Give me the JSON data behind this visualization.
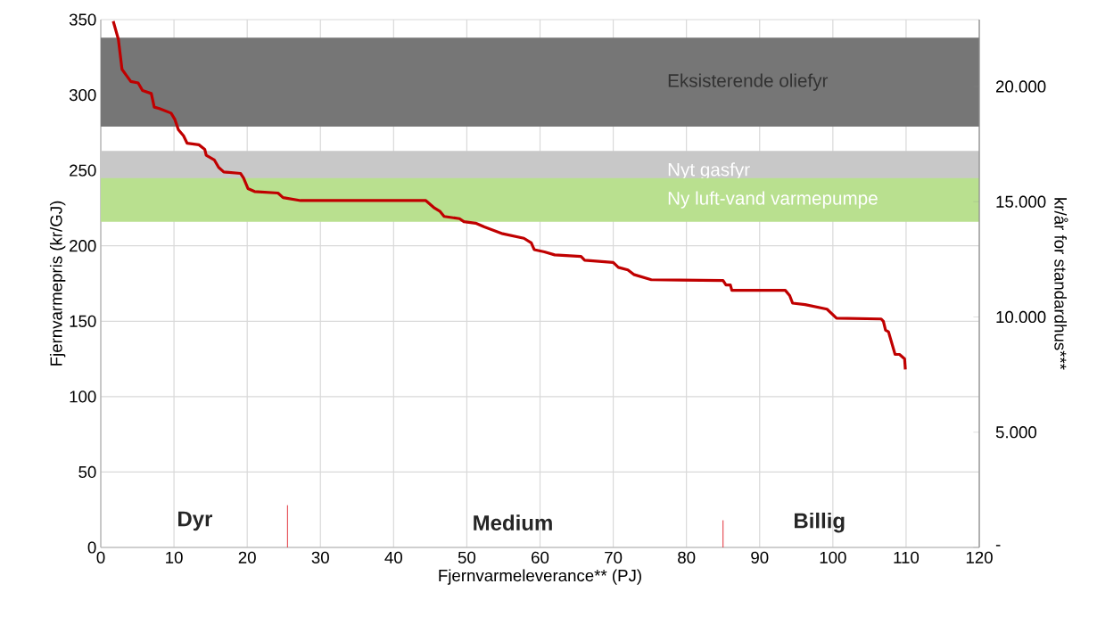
{
  "chart_data": {
    "type": "line",
    "xlabel": "Fjernvarmeleverance** (PJ)",
    "ylabel": "Fjernvarmepris (kr/GJ)",
    "y2label": "kr/år for standardhus***",
    "xlim": [
      0,
      120
    ],
    "xticks": [
      0,
      10,
      20,
      30,
      40,
      50,
      60,
      70,
      80,
      90,
      100,
      110,
      120
    ],
    "ylim": [
      0,
      350
    ],
    "yticks": [
      0,
      50,
      100,
      150,
      200,
      250,
      300,
      350
    ],
    "y2lim": [
      0,
      22900
    ],
    "y2ticks": [
      {
        "value": 0,
        "label": "-"
      },
      {
        "value": 5000,
        "label": "5.000"
      },
      {
        "value": 10000,
        "label": "10.000"
      },
      {
        "value": 15000,
        "label": "15.000"
      },
      {
        "value": 20000,
        "label": "20.000"
      }
    ],
    "grid": true,
    "marker": "none",
    "bands": [
      {
        "axis": "y",
        "from": 279,
        "to": 338,
        "label": "Eksisterende oliefyr",
        "color": "#767676"
      },
      {
        "axis": "y",
        "from": 236,
        "to": 263,
        "label": "Nyt gasfyr",
        "color": "#c8c8c8"
      },
      {
        "axis": "y",
        "from": 216,
        "to": 245,
        "label": "Ny luft-vand varmepumpe",
        "color": "#b9e08f"
      }
    ],
    "series": [
      {
        "color": "#c00000",
        "x": [
          1.7,
          2.4,
          2.9,
          3.5,
          4.1,
          5.1,
          5.7,
          6.9,
          7.3,
          8.0,
          9.6,
          10.1,
          10.6,
          11.3,
          11.8,
          13.4,
          14.2,
          14.4,
          15.5,
          16.1,
          16.8,
          19.1,
          19.5,
          20.1,
          21.0,
          24.2,
          24.9,
          27.3,
          44.4,
          45.6,
          46.3,
          46.9,
          49.0,
          49.6,
          51.2,
          52.4,
          54.9,
          57.8,
          58.8,
          59.2,
          60.6,
          62.0,
          65.6,
          66.1,
          70.0,
          70.7,
          72.0,
          72.8,
          75.2,
          85.0,
          85.4,
          86.0,
          86.2,
          93.5,
          94.1,
          94.5,
          96.2,
          99.2,
          100.5,
          106.6,
          106.9,
          107.2,
          107.6,
          108.5,
          109.1,
          109.8,
          109.9
        ],
        "values": [
          349,
          337,
          317,
          313,
          309,
          308,
          303,
          301,
          292,
          291,
          288,
          284,
          277,
          273,
          268,
          267,
          264,
          260,
          257,
          252,
          249,
          248,
          245,
          238,
          236,
          235,
          232,
          230,
          230,
          225,
          223,
          219.5,
          218,
          216,
          215,
          212.5,
          208,
          205,
          202,
          197.5,
          196,
          194,
          193,
          190.5,
          189,
          185.7,
          184,
          181,
          177.5,
          177,
          174,
          174,
          170.5,
          170.5,
          167,
          162,
          161,
          158,
          152,
          151.5,
          150,
          144,
          143,
          128,
          128,
          125,
          118
        ]
      },
      {
        "color": "#e0202a",
        "x": [
          25.5,
          25.5
        ],
        "values": [
          0,
          28
        ]
      },
      {
        "color": "#e0202a",
        "x": [
          85,
          85
        ],
        "values": [
          0,
          18
        ]
      }
    ],
    "annotations": [
      "Dyr",
      "Medium",
      "Billig"
    ]
  }
}
